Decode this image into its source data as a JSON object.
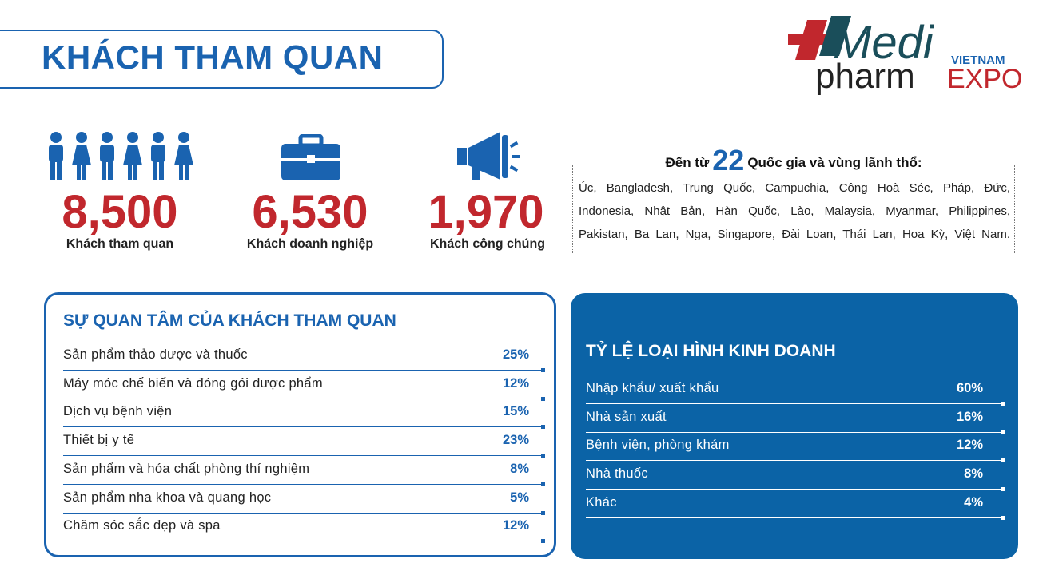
{
  "header": {
    "title": "KHÁCH THAM QUAN"
  },
  "logo": {
    "medi": "Medi",
    "pharm": "pharm",
    "vietnam": "VIETNAM",
    "expo": "EXPO"
  },
  "stats": [
    {
      "value": "8,500",
      "label": "Khách tham quan"
    },
    {
      "value": "6,530",
      "label": "Khách doanh nghiệp"
    },
    {
      "value": "1,970",
      "label": "Khách công chúng"
    }
  ],
  "countries": {
    "prefix": "Đến từ",
    "count": "22",
    "suffix": "Quốc gia và vùng lãnh thổ:",
    "lines": [
      "Úc, Bangladesh, Trung Quốc, Campuchia, Công Hoà Séc, Pháp, Đức,",
      "Indonesia, Nhật Bản, Hàn Quốc, Lào, Malaysia, Myanmar, Philippines,",
      "Pakistan, Ba Lan, Nga, Singapore, Đài Loan, Thái Lan, Hoa Kỳ, Việt Nam."
    ]
  },
  "interest": {
    "title": "SỰ QUAN TÂM CỦA KHÁCH THAM QUAN",
    "rows": [
      {
        "label": "Sản phẩm thảo dược và thuốc",
        "value": "25%"
      },
      {
        "label": "Máy móc chế biến và đóng gói dược phẩm",
        "value": "12%"
      },
      {
        "label": "Dịch vụ bệnh viện",
        "value": "15%"
      },
      {
        "label": "Thiết bị y tế",
        "value": "23%"
      },
      {
        "label": "Sản phẩm và hóa chất phòng thí nghiệm",
        "value": "8%"
      },
      {
        "label": "Sản phẩm nha khoa và quang học",
        "value": "5%"
      },
      {
        "label": "Chăm sóc sắc đẹp và spa",
        "value": "12%"
      }
    ]
  },
  "business": {
    "title": "TỶ LỆ LOẠI HÌNH KINH DOANH",
    "rows": [
      {
        "label": "Nhập khẩu/ xuất khẩu",
        "value": "60%"
      },
      {
        "label": "Nhà sản xuất",
        "value": "16%"
      },
      {
        "label": "Bệnh viện, phòng khám",
        "value": "12%"
      },
      {
        "label": "Nhà thuốc",
        "value": "8%"
      },
      {
        "label": "Khác",
        "value": "4%"
      }
    ]
  }
}
